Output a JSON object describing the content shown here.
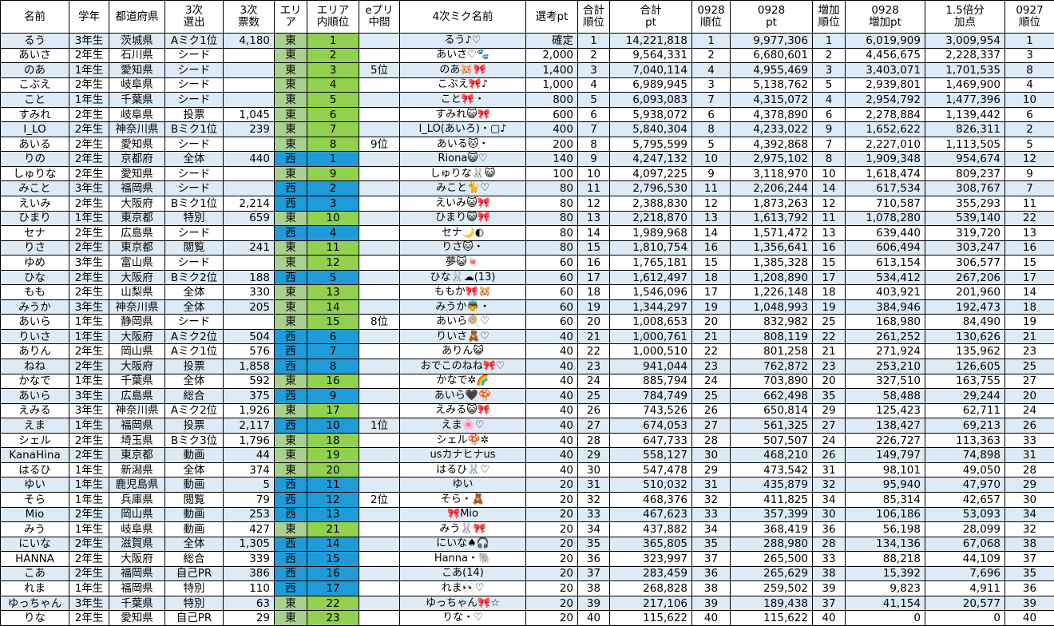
{
  "headers": [
    "名前",
    "学年",
    "都道府県",
    "3次\n選出",
    "3次\n票数",
    "エリア",
    "エリア\n内順位",
    "eプリ\n中間",
    "4次ミク名前",
    "選考pt",
    "合計\n順位",
    "合計\npt",
    "0928\n順位",
    "0928\npt",
    "増加\n順位",
    "0928\n増加pt",
    "1.5倍分\n加点",
    "0927\n順位"
  ],
  "colors": {
    "east_area": "#a9d08e",
    "east_rank": "#92d050",
    "west": "#1f9bd7",
    "stripe": "#ddebf7"
  },
  "rows": [
    {
      "name": "るう",
      "grade": "3年生",
      "pref": "茨城県",
      "sel3": "Aミク1位",
      "votes3": "4,180",
      "area": "東",
      "area_rank": "1",
      "epuri": "",
      "miku4": "るう♪♡",
      "select_pt": "確定",
      "total_rank": "1",
      "total_pt": "14,221,818",
      "r0928": "1",
      "pt0928": "9,977,306",
      "inc_rank": "1",
      "inc_pt": "6,019,909",
      "bonus": "3,009,954",
      "r0927": "1"
    },
    {
      "name": "あいさ",
      "grade": "2年生",
      "pref": "石川県",
      "sel3": "シード",
      "votes3": "",
      "area": "東",
      "area_rank": "2",
      "epuri": "",
      "miku4": "あいさ♡🐾",
      "select_pt": "2,000",
      "total_rank": "2",
      "total_pt": "9,564,331",
      "r0928": "2",
      "pt0928": "6,680,601",
      "inc_rank": "2",
      "inc_pt": "4,456,675",
      "bonus": "2,228,337",
      "r0927": "3"
    },
    {
      "name": "のあ",
      "grade": "1年生",
      "pref": "愛知県",
      "sel3": "シード",
      "votes3": "",
      "area": "東",
      "area_rank": "3",
      "epuri": "5位",
      "miku4": "のあ🐹🎀",
      "select_pt": "1,400",
      "total_rank": "3",
      "total_pt": "7,040,114",
      "r0928": "4",
      "pt0928": "4,955,469",
      "inc_rank": "3",
      "inc_pt": "3,403,071",
      "bonus": "1,701,535",
      "r0927": "8"
    },
    {
      "name": "こぶえ",
      "grade": "2年生",
      "pref": "岐阜県",
      "sel3": "シード",
      "votes3": "",
      "area": "東",
      "area_rank": "4",
      "epuri": "",
      "miku4": "こぶえ🎀♪",
      "select_pt": "1,000",
      "total_rank": "4",
      "total_pt": "6,989,945",
      "r0928": "3",
      "pt0928": "5,138,762",
      "inc_rank": "5",
      "inc_pt": "2,939,801",
      "bonus": "1,469,900",
      "r0927": "4"
    },
    {
      "name": "こと",
      "grade": "1年生",
      "pref": "千葉県",
      "sel3": "シード",
      "votes3": "",
      "area": "東",
      "area_rank": "5",
      "epuri": "",
      "miku4": "こと🎀・",
      "select_pt": "800",
      "total_rank": "5",
      "total_pt": "6,093,083",
      "r0928": "7",
      "pt0928": "4,315,072",
      "inc_rank": "4",
      "inc_pt": "2,954,792",
      "bonus": "1,477,396",
      "r0927": "10"
    },
    {
      "name": "すみれ",
      "grade": "2年生",
      "pref": "岐阜県",
      "sel3": "投票",
      "votes3": "1,045",
      "area": "東",
      "area_rank": "6",
      "epuri": "",
      "miku4": "すみれ😺🎀",
      "select_pt": "600",
      "total_rank": "6",
      "total_pt": "5,938,072",
      "r0928": "6",
      "pt0928": "4,378,890",
      "inc_rank": "6",
      "inc_pt": "2,278,884",
      "bonus": "1,139,442",
      "r0927": "6"
    },
    {
      "name": "I_LO",
      "grade": "2年生",
      "pref": "神奈川県",
      "sel3": "Bミク1位",
      "votes3": "239",
      "area": "東",
      "area_rank": "7",
      "epuri": "",
      "miku4": "I_LO(あいろ)・▢♪",
      "select_pt": "400",
      "total_rank": "7",
      "total_pt": "5,840,304",
      "r0928": "8",
      "pt0928": "4,233,022",
      "inc_rank": "9",
      "inc_pt": "1,652,622",
      "bonus": "826,311",
      "r0927": "2"
    },
    {
      "name": "あいる",
      "grade": "2年生",
      "pref": "愛知県",
      "sel3": "シード",
      "votes3": "",
      "area": "東",
      "area_rank": "8",
      "epuri": "9位",
      "miku4": "あいる🐱・",
      "select_pt": "200",
      "total_rank": "8",
      "total_pt": "5,795,599",
      "r0928": "5",
      "pt0928": "4,392,868",
      "inc_rank": "7",
      "inc_pt": "2,227,010",
      "bonus": "1,113,505",
      "r0927": "5"
    },
    {
      "name": "りの",
      "grade": "2年生",
      "pref": "京都府",
      "sel3": "全体",
      "votes3": "440",
      "area": "西",
      "area_rank": "1",
      "epuri": "",
      "miku4": "Riona😺♡",
      "select_pt": "140",
      "total_rank": "9",
      "total_pt": "4,247,132",
      "r0928": "10",
      "pt0928": "2,975,102",
      "inc_rank": "8",
      "inc_pt": "1,909,348",
      "bonus": "954,674",
      "r0927": "12"
    },
    {
      "name": "しゅりな",
      "grade": "2年生",
      "pref": "愛知県",
      "sel3": "シード",
      "votes3": "",
      "area": "東",
      "area_rank": "9",
      "epuri": "",
      "miku4": "しゅりな🐰😺",
      "select_pt": "100",
      "total_rank": "10",
      "total_pt": "4,097,225",
      "r0928": "9",
      "pt0928": "3,118,970",
      "inc_rank": "10",
      "inc_pt": "1,618,474",
      "bonus": "809,237",
      "r0927": "9"
    },
    {
      "name": "みこと",
      "grade": "3年生",
      "pref": "福岡県",
      "sel3": "シード",
      "votes3": "",
      "area": "西",
      "area_rank": "2",
      "epuri": "",
      "miku4": "みこと🐈♡",
      "select_pt": "80",
      "total_rank": "11",
      "total_pt": "2,796,530",
      "r0928": "11",
      "pt0928": "2,206,244",
      "inc_rank": "14",
      "inc_pt": "617,534",
      "bonus": "308,767",
      "r0927": "7"
    },
    {
      "name": "えいみ",
      "grade": "2年生",
      "pref": "大阪府",
      "sel3": "Bミク1位",
      "votes3": "2,214",
      "area": "西",
      "area_rank": "3",
      "epuri": "",
      "miku4": "えいみ😺🎀",
      "select_pt": "80",
      "total_rank": "12",
      "total_pt": "2,388,830",
      "r0928": "12",
      "pt0928": "1,873,263",
      "inc_rank": "12",
      "inc_pt": "710,587",
      "bonus": "355,293",
      "r0927": "11"
    },
    {
      "name": "ひまり",
      "grade": "1年生",
      "pref": "東京都",
      "sel3": "特別",
      "votes3": "659",
      "area": "東",
      "area_rank": "10",
      "epuri": "",
      "miku4": "ひまり😺🎀",
      "select_pt": "80",
      "total_rank": "13",
      "total_pt": "2,218,870",
      "r0928": "13",
      "pt0928": "1,613,792",
      "inc_rank": "11",
      "inc_pt": "1,078,280",
      "bonus": "539,140",
      "r0927": "22"
    },
    {
      "name": "セナ",
      "grade": "2年生",
      "pref": "広島県",
      "sel3": "シード",
      "votes3": "",
      "area": "西",
      "area_rank": "4",
      "epuri": "",
      "miku4": "セナ🌙◐",
      "select_pt": "80",
      "total_rank": "14",
      "total_pt": "1,989,968",
      "r0928": "14",
      "pt0928": "1,571,472",
      "inc_rank": "13",
      "inc_pt": "639,440",
      "bonus": "319,720",
      "r0927": "13"
    },
    {
      "name": "りさ",
      "grade": "2年生",
      "pref": "東京都",
      "sel3": "閲覧",
      "votes3": "241",
      "area": "東",
      "area_rank": "11",
      "epuri": "",
      "miku4": "りさ🐱・",
      "select_pt": "80",
      "total_rank": "15",
      "total_pt": "1,810,754",
      "r0928": "16",
      "pt0928": "1,356,641",
      "inc_rank": "16",
      "inc_pt": "606,494",
      "bonus": "303,247",
      "r0927": "16"
    },
    {
      "name": "ゆめ",
      "grade": "3年生",
      "pref": "富山県",
      "sel3": "シード",
      "votes3": "",
      "area": "東",
      "area_rank": "12",
      "epuri": "",
      "miku4": "夢😺🍬",
      "select_pt": "60",
      "total_rank": "16",
      "total_pt": "1,765,181",
      "r0928": "15",
      "pt0928": "1,385,328",
      "inc_rank": "15",
      "inc_pt": "613,154",
      "bonus": "306,577",
      "r0927": "15"
    },
    {
      "name": "ひな",
      "grade": "2年生",
      "pref": "大阪府",
      "sel3": "Bミク2位",
      "votes3": "188",
      "area": "西",
      "area_rank": "5",
      "epuri": "",
      "miku4": "ひな🐰☁(13)",
      "select_pt": "60",
      "total_rank": "17",
      "total_pt": "1,612,497",
      "r0928": "18",
      "pt0928": "1,208,890",
      "inc_rank": "17",
      "inc_pt": "534,412",
      "bonus": "267,206",
      "r0927": "17"
    },
    {
      "name": "もも",
      "grade": "2年生",
      "pref": "山梨県",
      "sel3": "全体",
      "votes3": "330",
      "area": "東",
      "area_rank": "13",
      "epuri": "",
      "miku4": "ももか🎀🐹",
      "select_pt": "60",
      "total_rank": "18",
      "total_pt": "1,546,096",
      "r0928": "17",
      "pt0928": "1,226,148",
      "inc_rank": "18",
      "inc_pt": "403,921",
      "bonus": "201,960",
      "r0927": "14"
    },
    {
      "name": "みうか",
      "grade": "3年生",
      "pref": "神奈川県",
      "sel3": "全体",
      "votes3": "205",
      "area": "東",
      "area_rank": "14",
      "epuri": "",
      "miku4": "みうか👼・",
      "select_pt": "60",
      "total_rank": "19",
      "total_pt": "1,344,297",
      "r0928": "19",
      "pt0928": "1,048,993",
      "inc_rank": "19",
      "inc_pt": "384,946",
      "bonus": "192,473",
      "r0927": "18"
    },
    {
      "name": "あいら",
      "grade": "1年生",
      "pref": "静岡県",
      "sel3": "シード",
      "votes3": "",
      "area": "東",
      "area_rank": "15",
      "epuri": "8位",
      "miku4": "あいら🍭♡",
      "select_pt": "60",
      "total_rank": "20",
      "total_pt": "1,008,653",
      "r0928": "20",
      "pt0928": "832,982",
      "inc_rank": "25",
      "inc_pt": "168,980",
      "bonus": "84,490",
      "r0927": "19"
    },
    {
      "name": "りいさ",
      "grade": "1年生",
      "pref": "大阪府",
      "sel3": "Aミク2位",
      "votes3": "504",
      "area": "西",
      "area_rank": "6",
      "epuri": "",
      "miku4": "りいさ🧸♡",
      "select_pt": "40",
      "total_rank": "21",
      "total_pt": "1,000,761",
      "r0928": "21",
      "pt0928": "808,119",
      "inc_rank": "22",
      "inc_pt": "261,252",
      "bonus": "130,626",
      "r0927": "21"
    },
    {
      "name": "ありん",
      "grade": "2年生",
      "pref": "岡山県",
      "sel3": "Aミク1位",
      "votes3": "576",
      "area": "西",
      "area_rank": "7",
      "epuri": "",
      "miku4": "ありん😺",
      "select_pt": "40",
      "total_rank": "22",
      "total_pt": "1,000,510",
      "r0928": "22",
      "pt0928": "801,258",
      "inc_rank": "21",
      "inc_pt": "271,924",
      "bonus": "135,962",
      "r0927": "23"
    },
    {
      "name": "ねね",
      "grade": "2年生",
      "pref": "大阪府",
      "sel3": "投票",
      "votes3": "1,858",
      "area": "西",
      "area_rank": "8",
      "epuri": "",
      "miku4": "おでこのねね🎀♡",
      "select_pt": "40",
      "total_rank": "23",
      "total_pt": "941,044",
      "r0928": "23",
      "pt0928": "762,872",
      "inc_rank": "23",
      "inc_pt": "253,210",
      "bonus": "126,605",
      "r0927": "25"
    },
    {
      "name": "かなで",
      "grade": "1年生",
      "pref": "千葉県",
      "sel3": "全体",
      "votes3": "592",
      "area": "東",
      "area_rank": "16",
      "epuri": "",
      "miku4": "かなで✲🌈",
      "select_pt": "40",
      "total_rank": "24",
      "total_pt": "885,794",
      "r0928": "24",
      "pt0928": "703,890",
      "inc_rank": "20",
      "inc_pt": "327,510",
      "bonus": "163,755",
      "r0927": "27"
    },
    {
      "name": "あいら",
      "grade": "3年生",
      "pref": "広島県",
      "sel3": "総合",
      "votes3": "375",
      "area": "西",
      "area_rank": "9",
      "epuri": "",
      "miku4": "あいら🖤🍄",
      "select_pt": "40",
      "total_rank": "25",
      "total_pt": "784,749",
      "r0928": "25",
      "pt0928": "662,498",
      "inc_rank": "35",
      "inc_pt": "58,488",
      "bonus": "29,244",
      "r0927": "20"
    },
    {
      "name": "えみる",
      "grade": "3年生",
      "pref": "神奈川県",
      "sel3": "Aミク2位",
      "votes3": "1,926",
      "area": "東",
      "area_rank": "17",
      "epuri": "",
      "miku4": "えみる😺🎀",
      "select_pt": "40",
      "total_rank": "26",
      "total_pt": "743,526",
      "r0928": "26",
      "pt0928": "650,814",
      "inc_rank": "29",
      "inc_pt": "125,423",
      "bonus": "62,711",
      "r0927": "24"
    },
    {
      "name": "えま",
      "grade": "1年生",
      "pref": "福岡県",
      "sel3": "投票",
      "votes3": "2,117",
      "area": "西",
      "area_rank": "10",
      "epuri": "1位",
      "miku4": "えま🌸♡",
      "select_pt": "40",
      "total_rank": "27",
      "total_pt": "674,053",
      "r0928": "27",
      "pt0928": "561,325",
      "inc_rank": "27",
      "inc_pt": "138,427",
      "bonus": "69,213",
      "r0927": "26"
    },
    {
      "name": "シェル",
      "grade": "2年生",
      "pref": "埼玉県",
      "sel3": "Bミク3位",
      "votes3": "1,796",
      "area": "東",
      "area_rank": "18",
      "epuri": "",
      "miku4": "シェル🍄✲",
      "select_pt": "40",
      "total_rank": "28",
      "total_pt": "647,733",
      "r0928": "28",
      "pt0928": "507,507",
      "inc_rank": "24",
      "inc_pt": "226,727",
      "bonus": "113,363",
      "r0927": "33"
    },
    {
      "name": "KanaHina",
      "grade": "2年生",
      "pref": "東京都",
      "sel3": "動画",
      "votes3": "44",
      "area": "東",
      "area_rank": "19",
      "epuri": "",
      "miku4": "usカナヒナus",
      "select_pt": "40",
      "total_rank": "29",
      "total_pt": "558,127",
      "r0928": "30",
      "pt0928": "468,210",
      "inc_rank": "26",
      "inc_pt": "149,797",
      "bonus": "74,898",
      "r0927": "31"
    },
    {
      "name": "はるひ",
      "grade": "1年生",
      "pref": "新潟県",
      "sel3": "全体",
      "votes3": "374",
      "area": "東",
      "area_rank": "20",
      "epuri": "",
      "miku4": "はるひ🐰♡",
      "select_pt": "40",
      "total_rank": "30",
      "total_pt": "547,478",
      "r0928": "29",
      "pt0928": "473,542",
      "inc_rank": "31",
      "inc_pt": "98,101",
      "bonus": "49,050",
      "r0927": "28"
    },
    {
      "name": "ゆい",
      "grade": "1年生",
      "pref": "鹿児島県",
      "sel3": "動画",
      "votes3": "5",
      "area": "西",
      "area_rank": "11",
      "epuri": "",
      "miku4": "ゆい",
      "select_pt": "20",
      "total_rank": "31",
      "total_pt": "510,032",
      "r0928": "31",
      "pt0928": "435,879",
      "inc_rank": "32",
      "inc_pt": "95,940",
      "bonus": "47,970",
      "r0927": "29"
    },
    {
      "name": "そら",
      "grade": "1年生",
      "pref": "兵庫県",
      "sel3": "閲覧",
      "votes3": "79",
      "area": "西",
      "area_rank": "12",
      "epuri": "2位",
      "miku4": "そら・🧸",
      "select_pt": "20",
      "total_rank": "32",
      "total_pt": "468,376",
      "r0928": "32",
      "pt0928": "411,825",
      "inc_rank": "34",
      "inc_pt": "85,314",
      "bonus": "42,657",
      "r0927": "30"
    },
    {
      "name": "Mio",
      "grade": "2年生",
      "pref": "岡山県",
      "sel3": "動画",
      "votes3": "253",
      "area": "西",
      "area_rank": "13",
      "epuri": "",
      "miku4": "🎀Mio",
      "select_pt": "20",
      "total_rank": "33",
      "total_pt": "467,623",
      "r0928": "33",
      "pt0928": "357,399",
      "inc_rank": "30",
      "inc_pt": "106,186",
      "bonus": "53,093",
      "r0927": "34"
    },
    {
      "name": "みう",
      "grade": "1年生",
      "pref": "岐阜県",
      "sel3": "動画",
      "votes3": "427",
      "area": "東",
      "area_rank": "21",
      "epuri": "",
      "miku4": "みう🐰🎀",
      "select_pt": "20",
      "total_rank": "34",
      "total_pt": "437,882",
      "r0928": "34",
      "pt0928": "368,419",
      "inc_rank": "36",
      "inc_pt": "56,198",
      "bonus": "28,099",
      "r0927": "32"
    },
    {
      "name": "にいな",
      "grade": "2年生",
      "pref": "滋賀県",
      "sel3": "全体",
      "votes3": "1,305",
      "area": "西",
      "area_rank": "14",
      "epuri": "",
      "miku4": "にいな♠🎧",
      "select_pt": "20",
      "total_rank": "35",
      "total_pt": "365,805",
      "r0928": "35",
      "pt0928": "288,980",
      "inc_rank": "28",
      "inc_pt": "134,136",
      "bonus": "67,068",
      "r0927": "38"
    },
    {
      "name": "HANNA",
      "grade": "2年生",
      "pref": "大阪府",
      "sel3": "総合",
      "votes3": "339",
      "area": "西",
      "area_rank": "15",
      "epuri": "",
      "miku4": "Hanna・🐘",
      "select_pt": "20",
      "total_rank": "36",
      "total_pt": "323,997",
      "r0928": "37",
      "pt0928": "265,500",
      "inc_rank": "33",
      "inc_pt": "88,218",
      "bonus": "44,109",
      "r0927": "37"
    },
    {
      "name": "こあ",
      "grade": "2年生",
      "pref": "福岡県",
      "sel3": "自己PR",
      "votes3": "386",
      "area": "西",
      "area_rank": "16",
      "epuri": "",
      "miku4": "こあ(14)",
      "select_pt": "20",
      "total_rank": "37",
      "total_pt": "283,459",
      "r0928": "36",
      "pt0928": "265,629",
      "inc_rank": "38",
      "inc_pt": "15,392",
      "bonus": "7,696",
      "r0927": "35"
    },
    {
      "name": "れま",
      "grade": "1年生",
      "pref": "福岡県",
      "sel3": "特別",
      "votes3": "110",
      "area": "西",
      "area_rank": "17",
      "epuri": "",
      "miku4": "れま👀♡",
      "select_pt": "20",
      "total_rank": "38",
      "total_pt": "268,828",
      "r0928": "38",
      "pt0928": "259,502",
      "inc_rank": "39",
      "inc_pt": "9,823",
      "bonus": "4,911",
      "r0927": "36"
    },
    {
      "name": "ゆっちゃん",
      "grade": "3年生",
      "pref": "千葉県",
      "sel3": "特別",
      "votes3": "63",
      "area": "東",
      "area_rank": "22",
      "epuri": "",
      "miku4": "ゆっちゃん🎀☆",
      "select_pt": "20",
      "total_rank": "39",
      "total_pt": "217,106",
      "r0928": "39",
      "pt0928": "189,438",
      "inc_rank": "37",
      "inc_pt": "41,154",
      "bonus": "20,577",
      "r0927": "39"
    },
    {
      "name": "りな",
      "grade": "2年生",
      "pref": "愛知県",
      "sel3": "自己PR",
      "votes3": "29",
      "area": "東",
      "area_rank": "23",
      "epuri": "",
      "miku4": "りな・♡",
      "select_pt": "20",
      "total_rank": "40",
      "total_pt": "115,622",
      "r0928": "40",
      "pt0928": "115,622",
      "inc_rank": "40",
      "inc_pt": "0",
      "bonus": "0",
      "r0927": "40"
    }
  ]
}
